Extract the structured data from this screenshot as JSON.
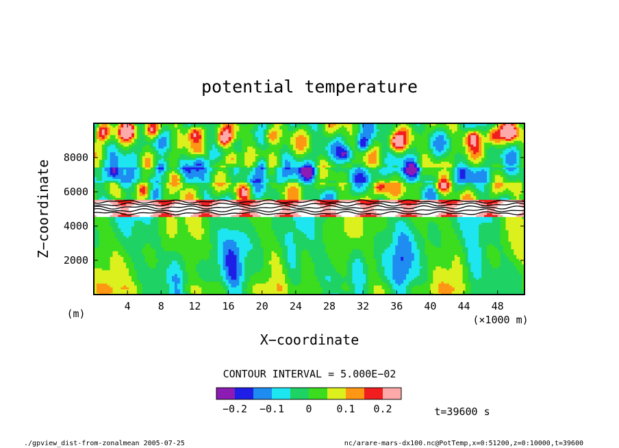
{
  "chart_data": {
    "type": "heatmap",
    "title": "potential temperature",
    "xlabel": "X−coordinate",
    "ylabel": "Z−coordinate",
    "x_unit_label": "(×1000 m)",
    "y_unit_label": "(m)",
    "x_ticks": [
      4,
      8,
      12,
      16,
      20,
      24,
      28,
      32,
      36,
      40,
      44,
      48
    ],
    "y_ticks": [
      2000,
      4000,
      6000,
      8000
    ],
    "xlim": [
      0,
      51.2
    ],
    "ylim": [
      0,
      10000
    ],
    "contour_interval_label": "CONTOUR INTERVAL = 5.000E−02",
    "time_label": "t=39600 s",
    "colorbar": {
      "labels": [
        "−0.2",
        "−0.1",
        "0",
        "0.1",
        "0.2"
      ],
      "label_values": [
        -0.2,
        -0.1,
        0,
        0.1,
        0.2
      ],
      "levels": [
        -0.25,
        -0.2,
        -0.15,
        -0.1,
        -0.05,
        0,
        0.05,
        0.1,
        0.15,
        0.2,
        0.25
      ],
      "colors": [
        "#8c1cb4",
        "#1e1ee6",
        "#1e8cf0",
        "#1ee6f0",
        "#1ed264",
        "#3cdc1e",
        "#dcf01e",
        "#ff9614",
        "#f01e1e",
        "#ffaaaa"
      ]
    },
    "bands": [
      {
        "z_range": [
          0,
          4600
        ],
        "dominant_value": 0.0,
        "description_key": "lower"
      },
      {
        "z_range": [
          4600,
          5600
        ],
        "dominant_value": 0.25,
        "description_key": "inversion"
      },
      {
        "z_range": [
          5600,
          10000
        ],
        "dominant_value": 0.0,
        "description_key": "upper"
      }
    ],
    "grid": false
  },
  "footer": {
    "left": "./gpview_dist-from-zonalmean  2005-07-25",
    "right": "nc/arare-mars-dx100.nc@PotTemp,x=0:51200,z=0:10000,t=39600"
  }
}
